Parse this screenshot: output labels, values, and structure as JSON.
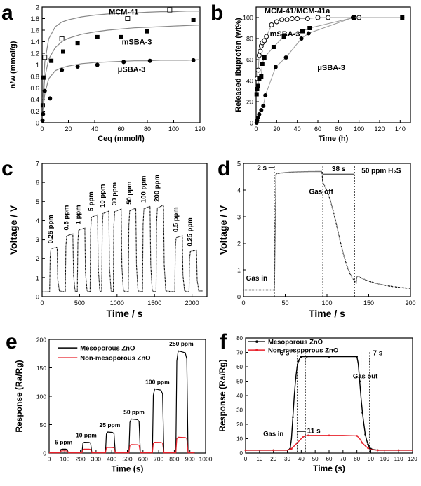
{
  "figure": {
    "panel_labels": [
      "a",
      "b",
      "c",
      "d",
      "e",
      "f"
    ]
  },
  "chart_data": [
    {
      "panel": "a",
      "type": "scatter",
      "xlabel": "Ceq (mmol/l)",
      "ylabel": "n/w (mmol/g)",
      "xlim": [
        0,
        120
      ],
      "ylim": [
        0,
        2.0
      ],
      "xticks": [
        0,
        20,
        40,
        60,
        80,
        100,
        120
      ],
      "yticks": [
        0,
        0.2,
        0.4,
        0.6,
        0.8,
        1.0,
        1.2,
        1.4,
        1.6,
        1.8,
        2.0
      ],
      "series": [
        {
          "name": "MCM-41",
          "marker": "open-square",
          "x": [
            2,
            15,
            65,
            97
          ],
          "y": [
            1.13,
            1.45,
            1.8,
            1.95
          ],
          "fit": {
            "x": [
              0.5,
              2,
              5,
              10,
              15,
              20,
              30,
              40,
              50,
              60,
              70,
              80,
              90,
              100,
              110,
              120
            ],
            "y": [
              0.42,
              1.05,
              1.45,
              1.66,
              1.74,
              1.78,
              1.83,
              1.86,
              1.88,
              1.89,
              1.9,
              1.91,
              1.92,
              1.92,
              1.93,
              1.93
            ]
          }
        },
        {
          "name": "mSBA-3",
          "marker": "filled-square",
          "x": [
            0.5,
            1,
            7,
            16,
            27,
            42,
            60,
            80,
            115
          ],
          "y": [
            0.3,
            0.78,
            1.07,
            1.23,
            1.38,
            1.48,
            1.48,
            1.58,
            1.78
          ],
          "fit": {
            "x": [
              0.5,
              2,
              5,
              10,
              15,
              20,
              30,
              40,
              50,
              60,
              70,
              80,
              90,
              100,
              110,
              120
            ],
            "y": [
              0.32,
              0.78,
              1.1,
              1.3,
              1.4,
              1.46,
              1.53,
              1.57,
              1.6,
              1.62,
              1.64,
              1.65,
              1.66,
              1.67,
              1.68,
              1.69
            ]
          }
        },
        {
          "name": "μSBA-3",
          "marker": "filled-circle",
          "x": [
            0.3,
            0.7,
            2,
            6,
            15,
            27,
            42,
            62,
            82,
            115
          ],
          "y": [
            0.04,
            0.15,
            0.55,
            0.42,
            0.91,
            0.97,
            1.0,
            1.05,
            1.07,
            1.08
          ],
          "fit": {
            "x": [
              0.5,
              2,
              5,
              10,
              15,
              20,
              30,
              40,
              50,
              60,
              70,
              80,
              90,
              100,
              110,
              120
            ],
            "y": [
              0.2,
              0.5,
              0.76,
              0.9,
              0.95,
              0.98,
              1.02,
              1.04,
              1.05,
              1.06,
              1.07,
              1.07,
              1.08,
              1.08,
              1.08,
              1.09
            ]
          }
        }
      ]
    },
    {
      "panel": "b",
      "type": "scatter",
      "xlabel": "Time (h)",
      "ylabel": "Released Ibuprofen (wt%)",
      "xlim": [
        0,
        150
      ],
      "ylim": [
        0,
        110
      ],
      "xticks": [
        0,
        20,
        40,
        60,
        80,
        100,
        120,
        140
      ],
      "yticks": [
        0,
        20,
        40,
        60,
        80,
        100
      ],
      "series": [
        {
          "name": "MCM-41/MCM-41a",
          "marker": "open-circle",
          "x": [
            1,
            2,
            3,
            4,
            5,
            6,
            8,
            10,
            15,
            20,
            25,
            30,
            35,
            40,
            50,
            60,
            70,
            100
          ],
          "y": [
            42,
            50,
            64,
            68,
            73,
            76,
            78,
            82,
            93,
            96,
            98,
            98,
            99,
            99,
            99,
            100,
            100,
            100
          ]
        },
        {
          "name": "mSBA-3",
          "marker": "filled-square",
          "x": [
            0.5,
            1,
            2,
            3,
            5,
            6,
            8,
            17,
            27,
            45,
            52,
            95,
            142
          ],
          "y": [
            27,
            32,
            35,
            42,
            44,
            56,
            62,
            72,
            82,
            87,
            90,
            100,
            100
          ]
        },
        {
          "name": "μSBA-3",
          "marker": "filled-circle",
          "x": [
            0.5,
            1,
            2,
            3,
            5,
            7,
            9,
            19,
            29,
            44,
            51,
            94,
            142
          ],
          "y": [
            0,
            2,
            5,
            8,
            12,
            16,
            26,
            53,
            62,
            80,
            85,
            100,
            100
          ]
        }
      ]
    },
    {
      "panel": "c",
      "type": "line",
      "xlabel": "Time / s",
      "ylabel": "Voltage / V",
      "xlim": [
        0,
        2200
      ],
      "ylim": [
        0,
        7
      ],
      "xticks": [
        0,
        500,
        1000,
        1500,
        2000
      ],
      "yticks": [
        0,
        1,
        2,
        3,
        4,
        5,
        6,
        7
      ],
      "baseline": 0.25,
      "pulses": [
        {
          "label": "0.25 ppm",
          "start": 100,
          "end": 200,
          "peak": 2.6
        },
        {
          "label": "0.5 ppm",
          "start": 310,
          "end": 410,
          "peak": 3.3
        },
        {
          "label": "1 ppm",
          "start": 470,
          "end": 570,
          "peak": 3.6
        },
        {
          "label": "5 ppm",
          "start": 640,
          "end": 740,
          "peak": 4.3
        },
        {
          "label": "10 ppm",
          "start": 795,
          "end": 890,
          "peak": 4.5
        },
        {
          "label": "30 ppm",
          "start": 950,
          "end": 1055,
          "peak": 4.6
        },
        {
          "label": "50 ppm",
          "start": 1150,
          "end": 1250,
          "peak": 4.65
        },
        {
          "label": "100 ppm",
          "start": 1340,
          "end": 1440,
          "peak": 4.75
        },
        {
          "label": "200 ppm",
          "start": 1520,
          "end": 1620,
          "peak": 4.8
        },
        {
          "label": "0.5 ppm",
          "start": 1770,
          "end": 1870,
          "peak": 3.2
        },
        {
          "label": "0.25 ppm",
          "start": 1960,
          "end": 2060,
          "peak": 2.45
        }
      ]
    },
    {
      "panel": "d",
      "type": "line",
      "xlabel": "Time / s",
      "ylabel": "Voltage / V",
      "xlim": [
        0,
        200
      ],
      "ylim": [
        0,
        5
      ],
      "xticks": [
        0,
        50,
        100,
        150,
        200
      ],
      "yticks": [
        0,
        1,
        2,
        3,
        4,
        5
      ],
      "title": "50 ppm H₂S",
      "gas_in": 37,
      "gas_off": 95,
      "baseline": 0.25,
      "plateau": 4.7,
      "annotations": [
        "Gas in",
        "Gas off",
        "2 s",
        "38 s"
      ],
      "markers_x": [
        37,
        39,
        95,
        133
      ]
    },
    {
      "panel": "e",
      "type": "line",
      "xlabel": "Time (s)",
      "ylabel": "Response (Ra/Rg)",
      "xlim": [
        0,
        1000
      ],
      "ylim": [
        0,
        200
      ],
      "xticks": [
        0,
        100,
        200,
        300,
        400,
        500,
        600,
        700,
        800,
        900,
        1000
      ],
      "yticks": [
        0,
        50,
        100,
        150,
        200
      ],
      "series": [
        {
          "name": "Mesoporous ZnO",
          "color": "#000000",
          "pulses": [
            {
              "label": "5 ppm",
              "start": 70,
              "end": 115,
              "peak": 7
            },
            {
              "label": "10 ppm",
              "start": 210,
              "end": 265,
              "peak": 19
            },
            {
              "label": "25 ppm",
              "start": 360,
              "end": 415,
              "peak": 37
            },
            {
              "label": "50 ppm",
              "start": 510,
              "end": 575,
              "peak": 60
            },
            {
              "label": "100 ppm",
              "start": 660,
              "end": 725,
              "peak": 113
            },
            {
              "label": "250 ppm",
              "start": 810,
              "end": 880,
              "peak": 180
            }
          ]
        },
        {
          "name": "Non-mesoporous ZnO",
          "color": "#e8202a",
          "pulses": [
            {
              "start": 70,
              "end": 115,
              "peak": 4
            },
            {
              "start": 210,
              "end": 265,
              "peak": 7
            },
            {
              "start": 360,
              "end": 415,
              "peak": 10
            },
            {
              "start": 510,
              "end": 575,
              "peak": 15
            },
            {
              "start": 660,
              "end": 725,
              "peak": 19
            },
            {
              "start": 810,
              "end": 880,
              "peak": 28
            }
          ]
        }
      ]
    },
    {
      "panel": "f",
      "type": "line",
      "xlabel": "Time (s)",
      "ylabel": "Response (Ra/Rg)",
      "xlim": [
        0,
        120
      ],
      "ylim": [
        0,
        80
      ],
      "xticks": [
        0,
        10,
        20,
        30,
        40,
        50,
        60,
        70,
        80,
        90,
        100,
        110,
        120
      ],
      "yticks": [
        0,
        10,
        20,
        30,
        40,
        50,
        60,
        70,
        80
      ],
      "series": [
        {
          "name": "Mesoporous ZnO",
          "color": "#000000",
          "x": [
            0,
            10,
            20,
            30,
            32,
            33,
            34,
            35,
            36,
            37,
            38,
            39,
            40,
            42,
            44,
            50,
            60,
            70,
            80,
            81,
            82,
            83,
            84,
            85,
            86,
            87,
            88,
            89,
            90,
            92,
            95,
            100,
            110,
            120
          ],
          "y": [
            2,
            2,
            2,
            2,
            3,
            10,
            25,
            40,
            52,
            60,
            64,
            66,
            67,
            67,
            67,
            67,
            67,
            67,
            67,
            62,
            50,
            38,
            28,
            20,
            13,
            9,
            6,
            4,
            3,
            2.5,
            2,
            2,
            2,
            2
          ]
        },
        {
          "name": "Non-mesoporous ZnO",
          "color": "#e8202a",
          "x": [
            0,
            10,
            20,
            30,
            33,
            35,
            37,
            39,
            41,
            43,
            45,
            50,
            60,
            70,
            80,
            82,
            84,
            86,
            88,
            90,
            95,
            100,
            110,
            120
          ],
          "y": [
            2,
            2,
            2,
            2,
            3,
            5,
            7,
            9,
            11,
            12,
            12.3,
            12.3,
            12.3,
            12.3,
            12,
            10,
            7,
            5,
            3.5,
            2.5,
            2,
            2,
            2,
            2
          ]
        }
      ],
      "annotations": [
        "6 s",
        "7 s",
        "11 s",
        "Gas in",
        "Gas out"
      ],
      "markers_x": [
        32,
        37,
        43,
        83,
        89
      ]
    }
  ]
}
